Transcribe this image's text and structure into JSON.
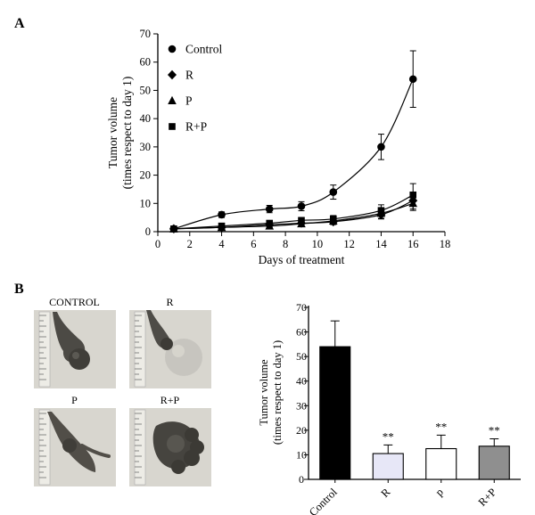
{
  "figure": {
    "panel_a": "A",
    "panel_b": "B"
  },
  "chart_data": [
    {
      "type": "line",
      "xlabel": "Days of treatment",
      "ylabel_line1": "Tumor volume",
      "ylabel_line2": "(times respect to day 1)",
      "xlim": [
        0,
        18
      ],
      "ylim": [
        0,
        70
      ],
      "xticks": [
        0,
        2,
        4,
        6,
        8,
        10,
        12,
        14,
        16,
        18
      ],
      "yticks": [
        0,
        10,
        20,
        30,
        40,
        50,
        60,
        70
      ],
      "x": [
        1,
        4,
        7,
        9,
        11,
        14,
        16
      ],
      "series": [
        {
          "name": "Control",
          "marker": "circle",
          "values": [
            1,
            6,
            8,
            9,
            14,
            30,
            54
          ],
          "errors": [
            0.4,
            1,
            1.3,
            1.6,
            2.5,
            4.5,
            10
          ]
        },
        {
          "name": "R",
          "marker": "diamond",
          "values": [
            1,
            1.5,
            2.5,
            3,
            3.5,
            6,
            11
          ],
          "errors": [
            0.2,
            0.4,
            0.7,
            0.9,
            1,
            1.5,
            3
          ]
        },
        {
          "name": "P",
          "marker": "triangle",
          "values": [
            1,
            1.5,
            2,
            2.8,
            3.8,
            6.5,
            10
          ],
          "errors": [
            0.2,
            0.4,
            0.6,
            0.9,
            1,
            1.8,
            2.5
          ]
        },
        {
          "name": "R+P",
          "marker": "square",
          "values": [
            1,
            2,
            3,
            4,
            4.5,
            7.5,
            13
          ],
          "errors": [
            0.2,
            0.5,
            0.8,
            1,
            1.2,
            2,
            4
          ]
        }
      ],
      "legend_position": "upper-left",
      "grid": false
    },
    {
      "type": "bar",
      "categories": [
        "Control",
        "R",
        "p",
        "R+P"
      ],
      "values": [
        54,
        10.5,
        12.5,
        13.5
      ],
      "errors": [
        10.5,
        3.5,
        5.5,
        3
      ],
      "bar_colors": [
        "#000000",
        "#e7e7f7",
        "#ffffff",
        "#8f8f8f"
      ],
      "significance": [
        "",
        "**",
        "**",
        "**"
      ],
      "ylabel_line1": "Tumor volume",
      "ylabel_line2": "(times respect to day 1)",
      "ylim": [
        0,
        70
      ],
      "yticks": [
        0,
        10,
        20,
        30,
        40,
        50,
        60,
        70
      ],
      "grid": false
    }
  ],
  "photos": {
    "items": [
      {
        "label": "CONTROL"
      },
      {
        "label": "R"
      },
      {
        "label": "P"
      },
      {
        "label": "R+P"
      }
    ]
  }
}
